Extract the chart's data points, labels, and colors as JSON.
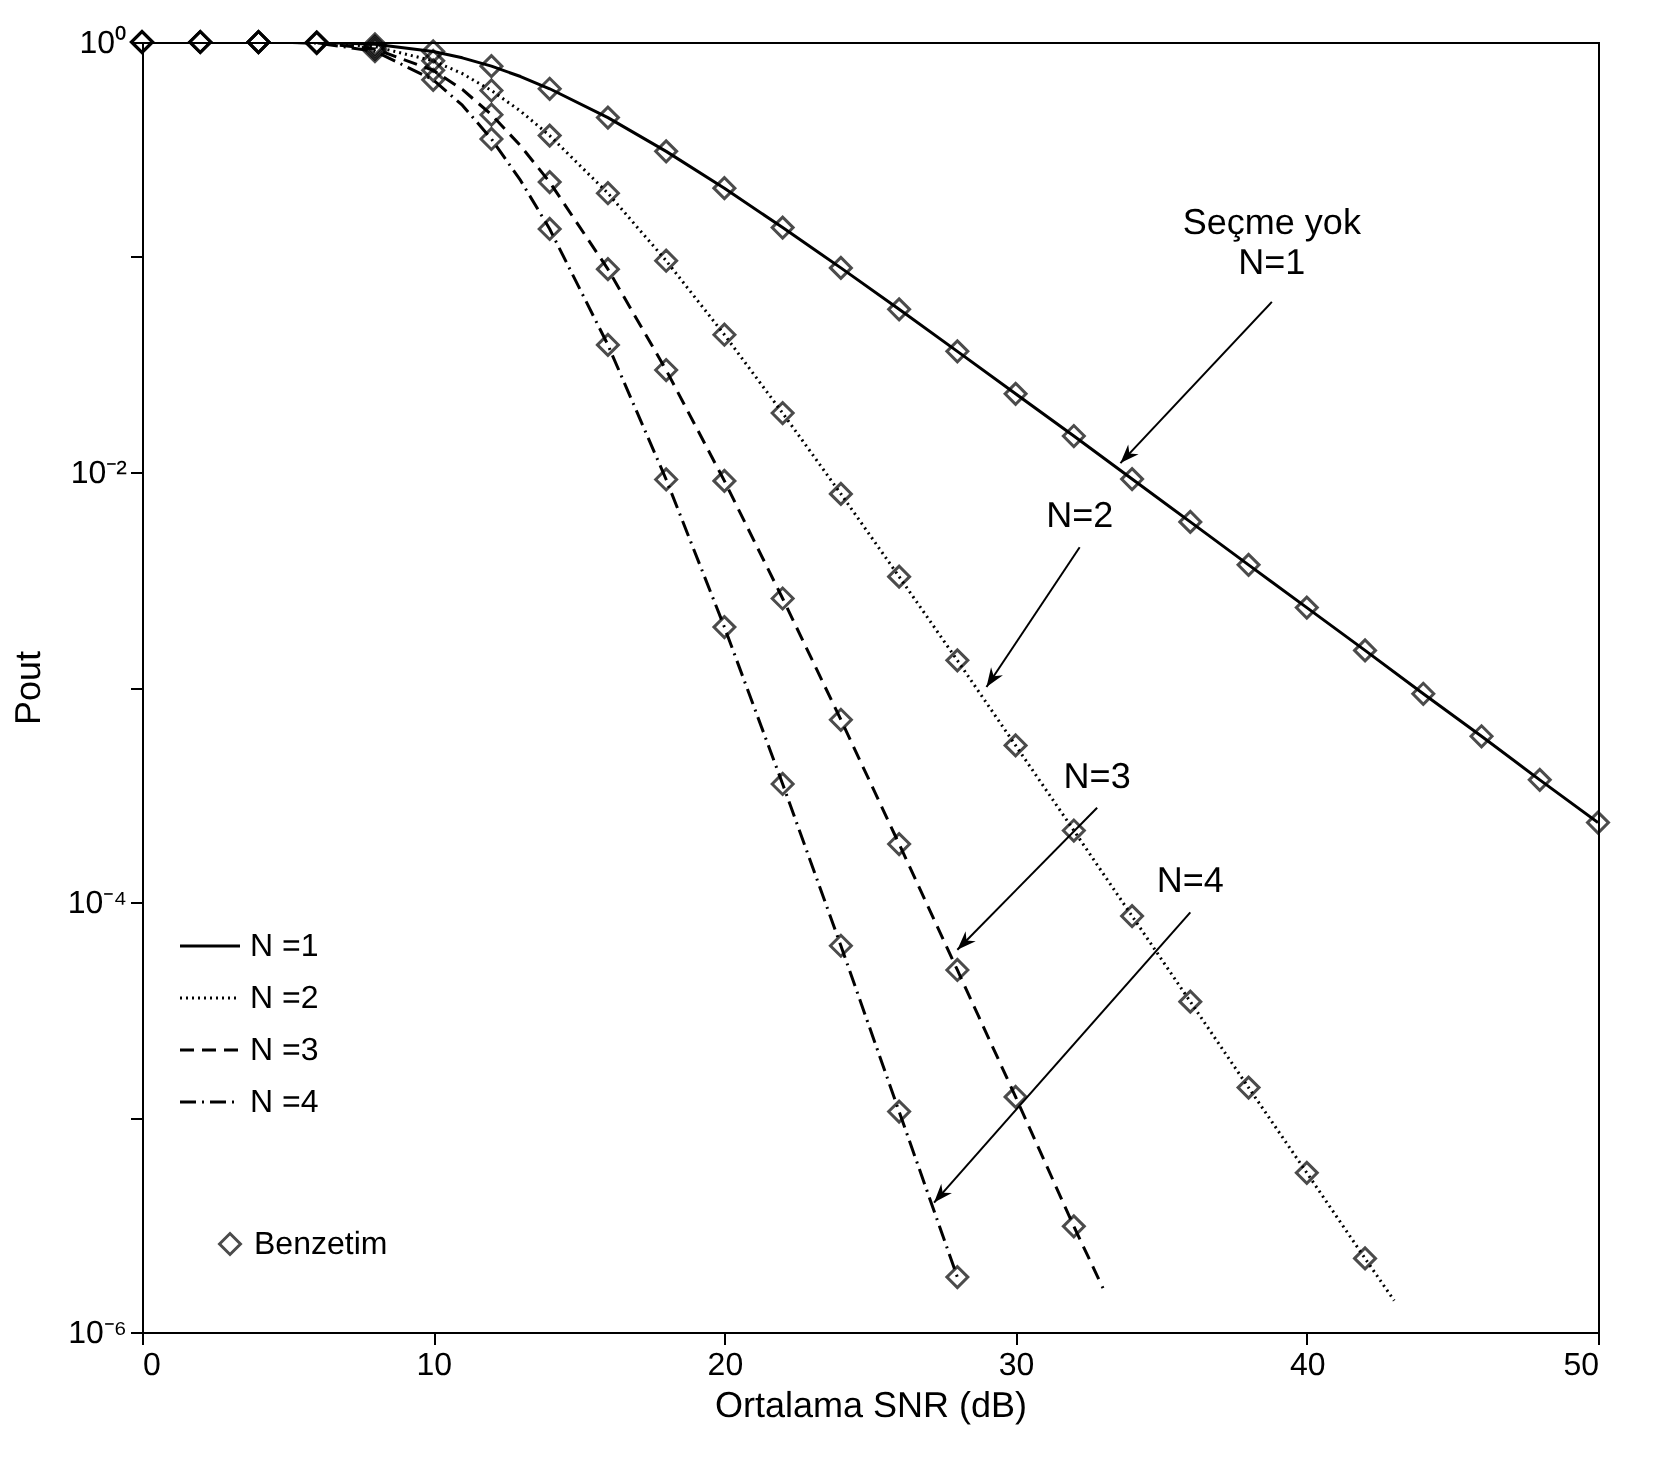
{
  "chart_data": {
    "type": "line",
    "xlabel": "Ortalama SNR (dB)",
    "ylabel": "Pout",
    "log": "y",
    "xlim": [
      0,
      50
    ],
    "xticks": [
      0,
      10,
      20,
      30,
      40,
      50
    ],
    "ylim": [
      1e-06,
      1
    ],
    "yticks": [
      {
        "value": 1,
        "label": "10⁰"
      },
      {
        "value": 0.1,
        "label": null
      },
      {
        "value": 0.01,
        "label": "10⁻²"
      },
      {
        "value": 0.001,
        "label": null
      },
      {
        "value": 0.0001,
        "label": "10⁻⁴"
      },
      {
        "value": 1e-05,
        "label": null
      },
      {
        "value": 1e-06,
        "label": "10⁻⁶"
      }
    ],
    "grid": false,
    "legend": "bottom left",
    "series": [
      {
        "name": "N =1",
        "color": "#000000",
        "line_style": "solid",
        "x": [
          0,
          2,
          4,
          6,
          8,
          10,
          11,
          12,
          13,
          14,
          16,
          18,
          20,
          22,
          24,
          26,
          28,
          30,
          32,
          34,
          36,
          38,
          40,
          42,
          44,
          46,
          48,
          50
        ],
        "values": [
          1,
          1,
          0.9999,
          0.9972,
          0.9755,
          0.904,
          0.844,
          0.772,
          0.691,
          0.606,
          0.445,
          0.31,
          0.209,
          0.137,
          0.089,
          0.0571,
          0.0364,
          0.0231,
          0.0147,
          0.00927,
          0.00586,
          0.0037,
          0.00234,
          0.00148,
          0.00093,
          0.00059,
          0.00037,
          0.000234
        ]
      },
      {
        "name": "N =2",
        "color": "#000000",
        "line_style": "dotted",
        "x": [
          0,
          2,
          4,
          6,
          8,
          10,
          11,
          12,
          13,
          14,
          16,
          18,
          20,
          22,
          24,
          26,
          28,
          30,
          32,
          34,
          36,
          38,
          40,
          42,
          43
        ],
        "values": [
          1,
          1,
          0.9998,
          0.994,
          0.952,
          0.817,
          0.713,
          0.595,
          0.477,
          0.367,
          0.198,
          0.0961,
          0.0435,
          0.0188,
          0.00791,
          0.00326,
          0.00133,
          0.000535,
          0.000215,
          8.6e-05,
          3.44e-05,
          1.37e-05,
          5.5e-06,
          2.2e-06,
          1.4e-06
        ]
      },
      {
        "name": "N =3",
        "color": "#000000",
        "line_style": "dashed",
        "x": [
          0,
          2,
          4,
          6,
          8,
          10,
          11,
          12,
          13,
          14,
          16,
          18,
          20,
          22,
          24,
          26,
          28,
          30,
          32,
          33
        ],
        "values": [
          1,
          1,
          0.9997,
          0.992,
          0.928,
          0.738,
          0.602,
          0.459,
          0.329,
          0.223,
          0.0878,
          0.0298,
          0.00909,
          0.00258,
          0.000704,
          0.000186,
          4.83e-05,
          1.24e-05,
          3.1e-06,
          1.6e-06
        ]
      },
      {
        "name": "N =4",
        "color": "#000000",
        "line_style": "dashdot",
        "x": [
          0,
          2,
          4,
          6,
          8,
          10,
          11,
          12,
          13,
          14,
          16,
          18,
          20,
          22,
          24,
          26,
          28
        ],
        "values": [
          1,
          1,
          0.9996,
          0.989,
          0.906,
          0.667,
          0.508,
          0.354,
          0.227,
          0.135,
          0.039,
          0.00923,
          0.0019,
          0.000354,
          6.26e-05,
          1.06e-05,
          1.8e-06
        ]
      },
      {
        "name": "Benzetim",
        "type": "scatter",
        "color": "#000000",
        "marker": "diamond",
        "x": [
          0,
          2,
          4,
          6,
          8,
          10,
          12,
          14,
          16,
          18,
          20,
          22,
          24,
          26,
          28,
          30,
          32,
          34,
          36,
          38,
          40,
          42,
          44,
          46,
          48,
          50,
          0,
          2,
          4,
          6,
          8,
          10,
          12,
          14,
          16,
          18,
          20,
          22,
          24,
          26,
          28,
          30,
          32,
          34,
          36,
          38,
          40,
          42,
          0,
          2,
          4,
          6,
          8,
          10,
          12,
          14,
          16,
          18,
          20,
          22,
          24,
          26,
          28,
          30,
          32,
          0,
          2,
          4,
          6,
          8,
          10,
          12,
          14,
          16,
          18,
          20,
          22,
          24,
          26,
          28
        ],
        "values": [
          1,
          1,
          0.9999,
          0.9972,
          0.9755,
          0.904,
          0.772,
          0.606,
          0.445,
          0.31,
          0.209,
          0.137,
          0.089,
          0.0571,
          0.0364,
          0.0231,
          0.0147,
          0.00927,
          0.00586,
          0.0037,
          0.00234,
          0.00148,
          0.00093,
          0.00059,
          0.00037,
          0.000234,
          1,
          1,
          0.9998,
          0.994,
          0.952,
          0.817,
          0.595,
          0.367,
          0.198,
          0.0961,
          0.0435,
          0.0188,
          0.00791,
          0.00326,
          0.00133,
          0.000535,
          0.000215,
          8.6e-05,
          3.44e-05,
          1.37e-05,
          5.5e-06,
          2.2e-06,
          1,
          1,
          0.9997,
          0.992,
          0.928,
          0.738,
          0.459,
          0.223,
          0.0878,
          0.0298,
          0.00909,
          0.00258,
          0.000704,
          0.000186,
          4.83e-05,
          1.24e-05,
          3.1e-06,
          1,
          1,
          0.9996,
          0.989,
          0.906,
          0.667,
          0.354,
          0.135,
          0.039,
          0.00923,
          0.0019,
          0.000354,
          6.26e-05,
          1.06e-05,
          1.8e-06
        ]
      }
    ],
    "annotations": [
      {
        "text": "Seçme yok\nN=1",
        "x": 33.6,
        "y": 0.011
      },
      {
        "text": "N=2",
        "x": 29,
        "y": 0.001
      },
      {
        "text": "N=3",
        "x": 28,
        "y": 6e-05
      },
      {
        "text": "N=4",
        "x": 27.2,
        "y": 4e-06
      }
    ]
  }
}
